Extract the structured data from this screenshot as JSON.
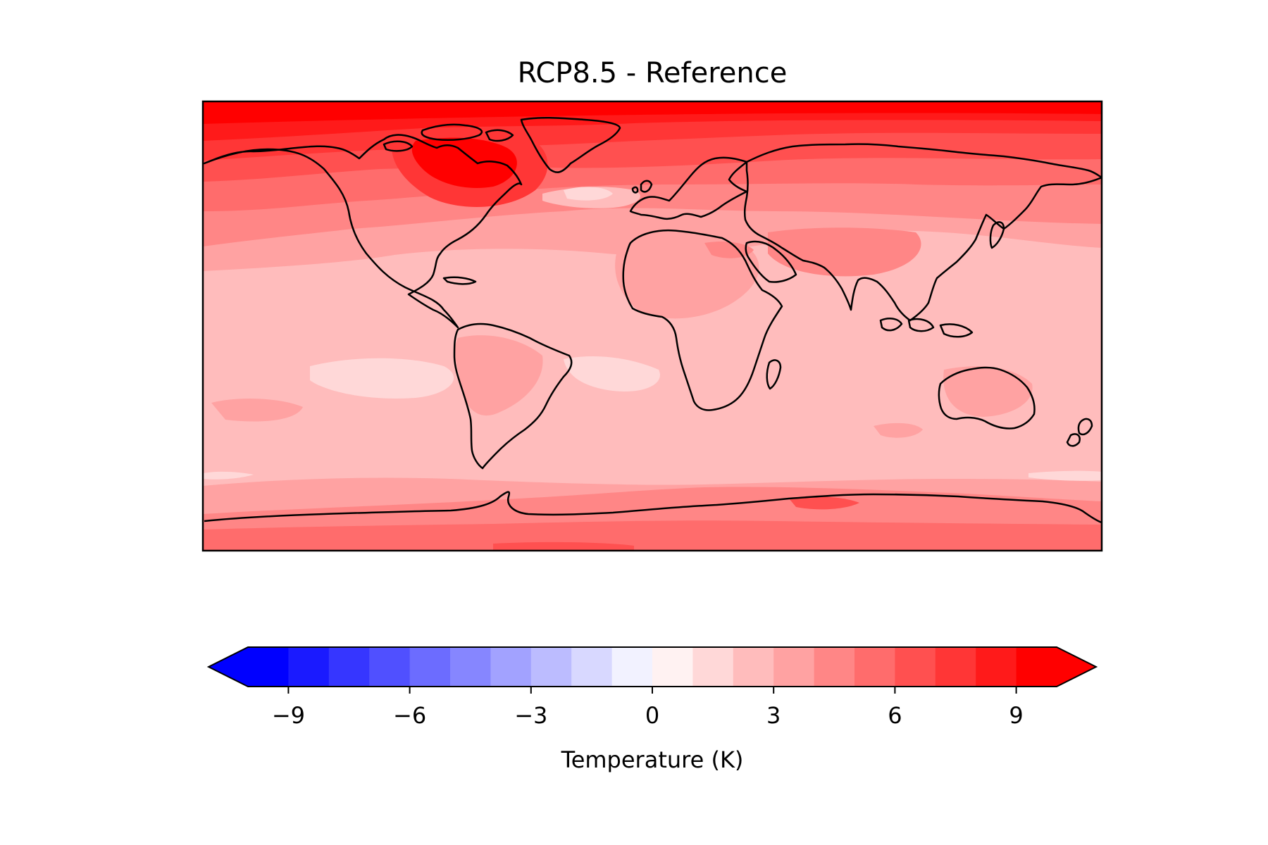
{
  "title": "RCP8.5 - Reference",
  "colorbar": {
    "label": "Temperature (K)",
    "boundaries": [
      -10,
      -9,
      -8,
      -7,
      -6,
      -5,
      -4,
      -3,
      -2,
      -1,
      0,
      1,
      2,
      3,
      4,
      5,
      6,
      7,
      8,
      9,
      10
    ],
    "ticks": [
      -9,
      -6,
      -3,
      0,
      3,
      6,
      9
    ],
    "tick_labels": [
      "−9",
      "−6",
      "−3",
      "0",
      "3",
      "6",
      "9"
    ],
    "extend": "both",
    "colors": [
      "#0000ff",
      "#1a1aff",
      "#3636ff",
      "#5050ff",
      "#6c6cff",
      "#8686ff",
      "#a2a2ff",
      "#bcbcff",
      "#d8d8ff",
      "#f2f2ff",
      "#fff2f2",
      "#ffd8d8",
      "#ffbcbc",
      "#ffa2a2",
      "#ff8686",
      "#ff6c6c",
      "#ff5050",
      "#ff3636",
      "#ff1a1a",
      "#ff0000"
    ],
    "under_color": "#0000ff",
    "over_color": "#ff0000"
  },
  "map": {
    "projection": "PlateCarree",
    "lon_range": [
      -180,
      180
    ],
    "lat_range": [
      -90,
      90
    ],
    "coastlines": true,
    "ocean_base_color": "#ffbcbc"
  }
}
